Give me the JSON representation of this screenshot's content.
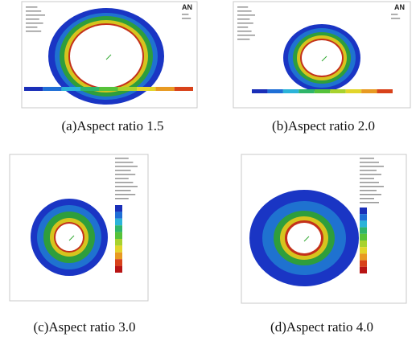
{
  "figure": {
    "panels": [
      {
        "caption": "(a)Aspect ratio 1.5",
        "logo": "AN"
      },
      {
        "caption": "(b)Aspect ratio 2.0",
        "logo": "AN"
      },
      {
        "caption": "(c)Aspect ratio 3.0"
      },
      {
        "caption": "(d)Aspect ratio 4.0"
      }
    ]
  }
}
